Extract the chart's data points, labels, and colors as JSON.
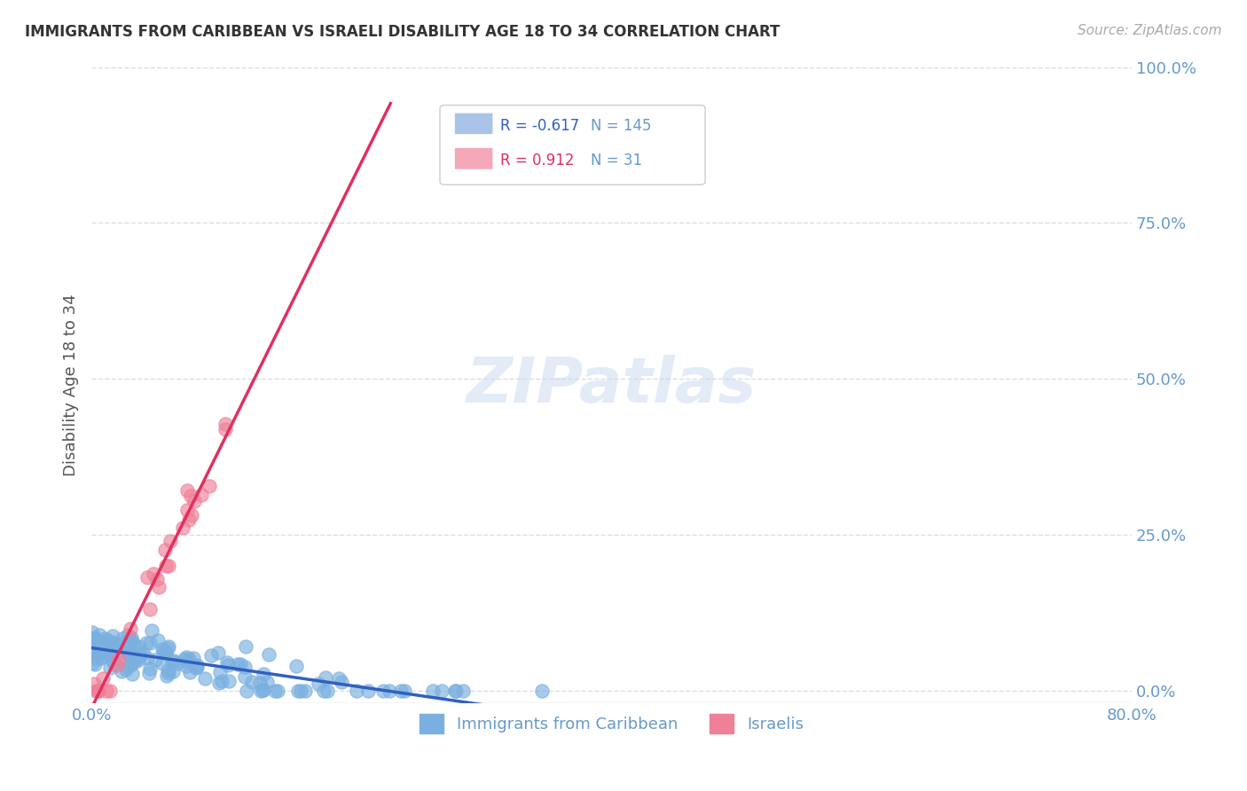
{
  "title": "IMMIGRANTS FROM CARIBBEAN VS ISRAELI DISABILITY AGE 18 TO 34 CORRELATION CHART",
  "source": "Source: ZipAtlas.com",
  "xlabel_ticks": [
    "0.0%",
    "80.0%"
  ],
  "ylabel": "Disability Age 18 to 34",
  "right_yticks": [
    "0.0%",
    "25.0%",
    "50.0%",
    "75.0%",
    "100.0%"
  ],
  "legend_entries": [
    {
      "label": "Immigrants from Caribbean",
      "color": "#aac4e8",
      "R": "-0.617",
      "N": "145"
    },
    {
      "label": "Israelis",
      "color": "#f4a8b8",
      "R": "0.912",
      "N": "31"
    }
  ],
  "blue_scatter_color": "#7ab0e0",
  "pink_scatter_color": "#f08098",
  "blue_line_color": "#3060c0",
  "pink_line_color": "#e03060",
  "watermark": "ZIPatlas",
  "title_color": "#333333",
  "axis_color": "#6699cc",
  "background_color": "#ffffff",
  "grid_color": "#dddddd"
}
